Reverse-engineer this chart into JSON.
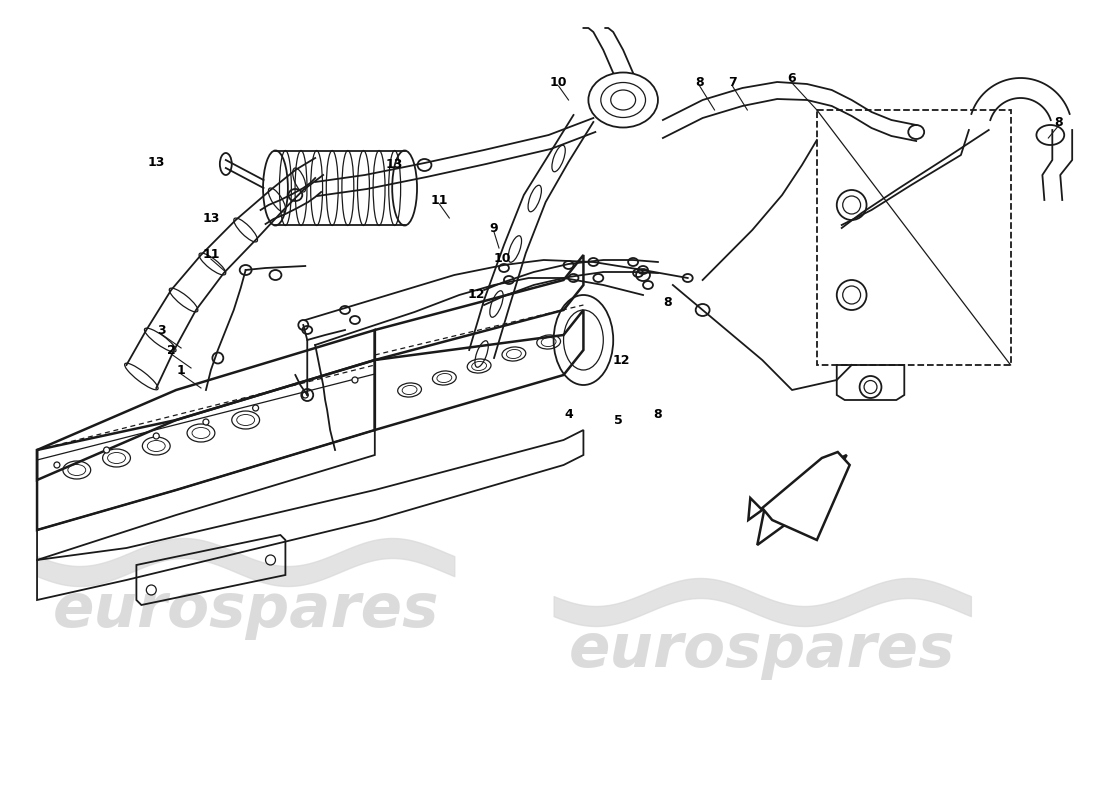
{
  "bg_color": "#ffffff",
  "line_color": "#1a1a1a",
  "watermark_color": "#d8d8d8",
  "label_color": "#000000",
  "lw_main": 1.8,
  "lw_med": 1.3,
  "lw_thin": 0.9,
  "figsize": [
    11.0,
    8.0
  ],
  "dpi": 100,
  "xlim": [
    0,
    1100
  ],
  "ylim": [
    800,
    0
  ]
}
